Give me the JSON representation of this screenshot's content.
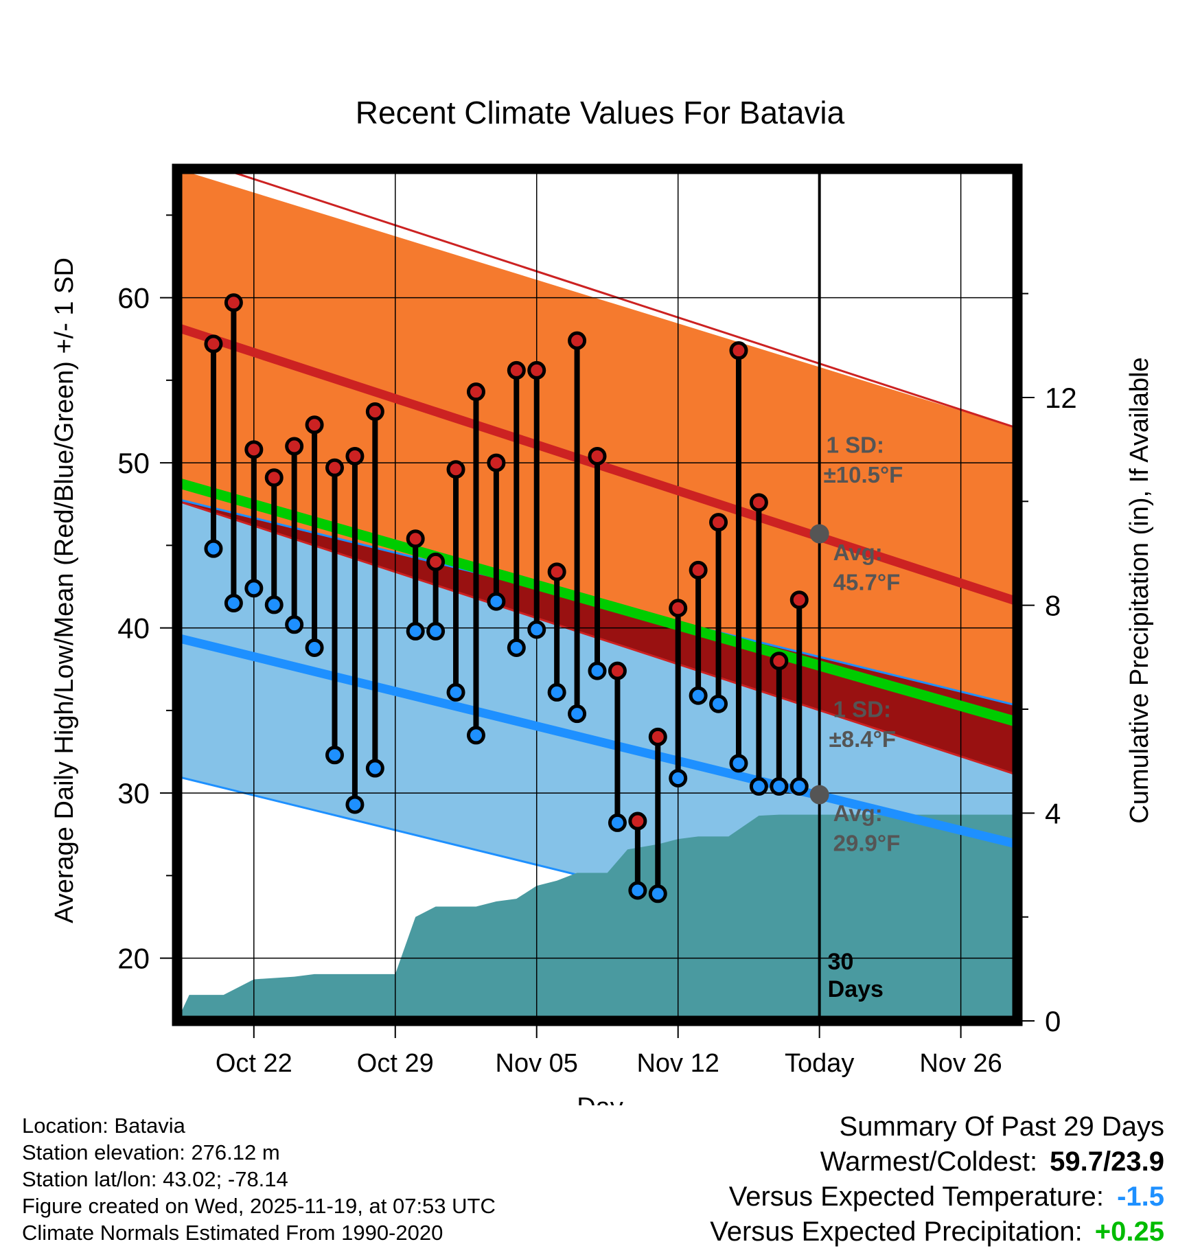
{
  "colors": {
    "high_band": "#f57a2e",
    "high_line": "#cc2222",
    "low_band": "#85c2e8",
    "low_line": "#1e90ff",
    "mean_line": "#00cc00",
    "dark_red": "#991111",
    "precip": "#4a9aa0",
    "high_marker": "#cc2222",
    "low_marker": "#1e90ff",
    "frame": "#000000",
    "annotation": "#555555",
    "cold_value": "#1e90ff",
    "wet_value": "#00bb00"
  },
  "chart_data": {
    "type": "line",
    "title": "Recent Climate Values For Batavia",
    "xlabel": "Day",
    "ylabel": "Average Daily High/Low/Mean (Red/Blue/Green) +/- 1 SD",
    "y2label": "Cumulative Precipitation (in), If Available",
    "x_range_days": [
      -1.8,
      39.8
    ],
    "x_ticks": [
      {
        "day": 2,
        "label": "Oct 22"
      },
      {
        "day": 9,
        "label": "Oct 29"
      },
      {
        "day": 16,
        "label": "Nov 05"
      },
      {
        "day": 23,
        "label": "Nov 12"
      },
      {
        "day": 30,
        "label": "Today"
      },
      {
        "day": 37,
        "label": "Nov 26"
      }
    ],
    "ylim": [
      16.2,
      67.8
    ],
    "yticks": [
      20,
      30,
      40,
      50,
      60
    ],
    "y2lim": [
      0,
      16.4
    ],
    "y2ticks": [
      0,
      4,
      8,
      12
    ],
    "today_day": 30,
    "today_label_line1": "30",
    "today_label_line2": "Days",
    "normal_high": {
      "start": 58.2,
      "end": 41.6
    },
    "normal_low": {
      "start": 39.4,
      "end": 26.9
    },
    "normal_mean": {
      "start": 48.8,
      "end": 34.3
    },
    "high_sd": 10.5,
    "low_sd": 8.4,
    "annotation_high_sd": "1 SD:",
    "annotation_high_sd_value": "±10.5°F",
    "annotation_high_avg": "Avg:",
    "annotation_high_avg_value": "45.7°F",
    "annotation_low_sd": "1 SD:",
    "annotation_low_sd_value": "±8.4°F",
    "annotation_low_avg": "Avg:",
    "annotation_low_avg_value": "29.9°F",
    "today_high_avg": 45.7,
    "today_low_avg": 29.9,
    "daily_highs": [
      57.2,
      59.7,
      50.8,
      49.1,
      51.0,
      52.3,
      49.7,
      50.4,
      53.1,
      null,
      45.4,
      44.0,
      49.6,
      54.3,
      50.0,
      55.6,
      55.6,
      43.4,
      57.4,
      50.4,
      37.4,
      28.3,
      33.4,
      41.2,
      43.5,
      46.4,
      56.8,
      47.6,
      38.0,
      41.7
    ],
    "daily_lows": [
      44.8,
      41.5,
      42.4,
      41.4,
      40.2,
      38.8,
      32.3,
      29.3,
      31.5,
      null,
      39.8,
      39.8,
      36.1,
      33.5,
      41.6,
      38.8,
      39.9,
      36.1,
      34.8,
      37.4,
      28.2,
      24.1,
      23.9,
      30.9,
      35.9,
      35.4,
      31.8,
      30.4,
      30.4,
      30.4
    ],
    "cumulative_precip_points": [
      [
        -1.8,
        0.0
      ],
      [
        -1.2,
        0.5
      ],
      [
        0.5,
        0.5
      ],
      [
        2.0,
        0.8
      ],
      [
        4.0,
        0.85
      ],
      [
        5.0,
        0.9
      ],
      [
        7.5,
        0.9
      ],
      [
        9.0,
        0.9
      ],
      [
        10.0,
        2.0
      ],
      [
        11.0,
        2.2
      ],
      [
        13.0,
        2.2
      ],
      [
        14.0,
        2.3
      ],
      [
        15.0,
        2.35
      ],
      [
        16.0,
        2.6
      ],
      [
        17.0,
        2.7
      ],
      [
        18.0,
        2.85
      ],
      [
        19.5,
        2.85
      ],
      [
        20.5,
        3.3
      ],
      [
        22.0,
        3.4
      ],
      [
        23.0,
        3.5
      ],
      [
        24.0,
        3.55
      ],
      [
        25.5,
        3.55
      ],
      [
        27.0,
        3.95
      ],
      [
        28.0,
        3.97
      ],
      [
        30.0,
        3.97
      ],
      [
        39.8,
        3.97
      ]
    ]
  },
  "info": {
    "location": "Location: Batavia",
    "elevation": "Station elevation: 276.12 m",
    "latlon": "Station lat/lon: 43.02; -78.14",
    "created": "Figure created on Wed, 2025-11-19, at 07:53 UTC",
    "normals": "Climate Normals Estimated From 1990-2020"
  },
  "summary": {
    "title": "Summary Of Past 29 Days",
    "warm_cold_label": "Warmest/Coldest:",
    "warm_cold_value": "59.7/23.9",
    "temp_label": "Versus Expected Temperature:",
    "temp_value": "-1.5",
    "precip_label": "Versus Expected Precipitation:",
    "precip_value": "+0.25"
  }
}
